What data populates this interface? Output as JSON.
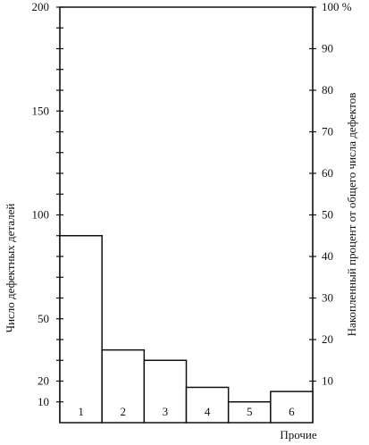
{
  "chart_data": {
    "type": "bar",
    "title": "",
    "ylabel": "Число дефектных деталей",
    "y2label": "Накопленный процент от общего числа дефектов",
    "xlabel": "",
    "categories": [
      "1",
      "2",
      "3",
      "4",
      "5",
      "6"
    ],
    "values": [
      90,
      35,
      30,
      17,
      10,
      15
    ],
    "other_label": "Прочие",
    "ylim": [
      0,
      200
    ],
    "y_ticks": [
      10,
      20,
      50,
      100,
      150,
      200
    ],
    "y_ticks_labels": [
      "10",
      "20",
      "50",
      "100",
      "150",
      "200"
    ],
    "y2lim": [
      0,
      100
    ],
    "y2_ticks": [
      10,
      20,
      30,
      40,
      50,
      60,
      70,
      80,
      90,
      100
    ],
    "y2_ticks_labels": [
      "10",
      "20",
      "30",
      "40",
      "50",
      "60",
      "70",
      "80",
      "90",
      "100 %"
    ],
    "grid": false
  }
}
